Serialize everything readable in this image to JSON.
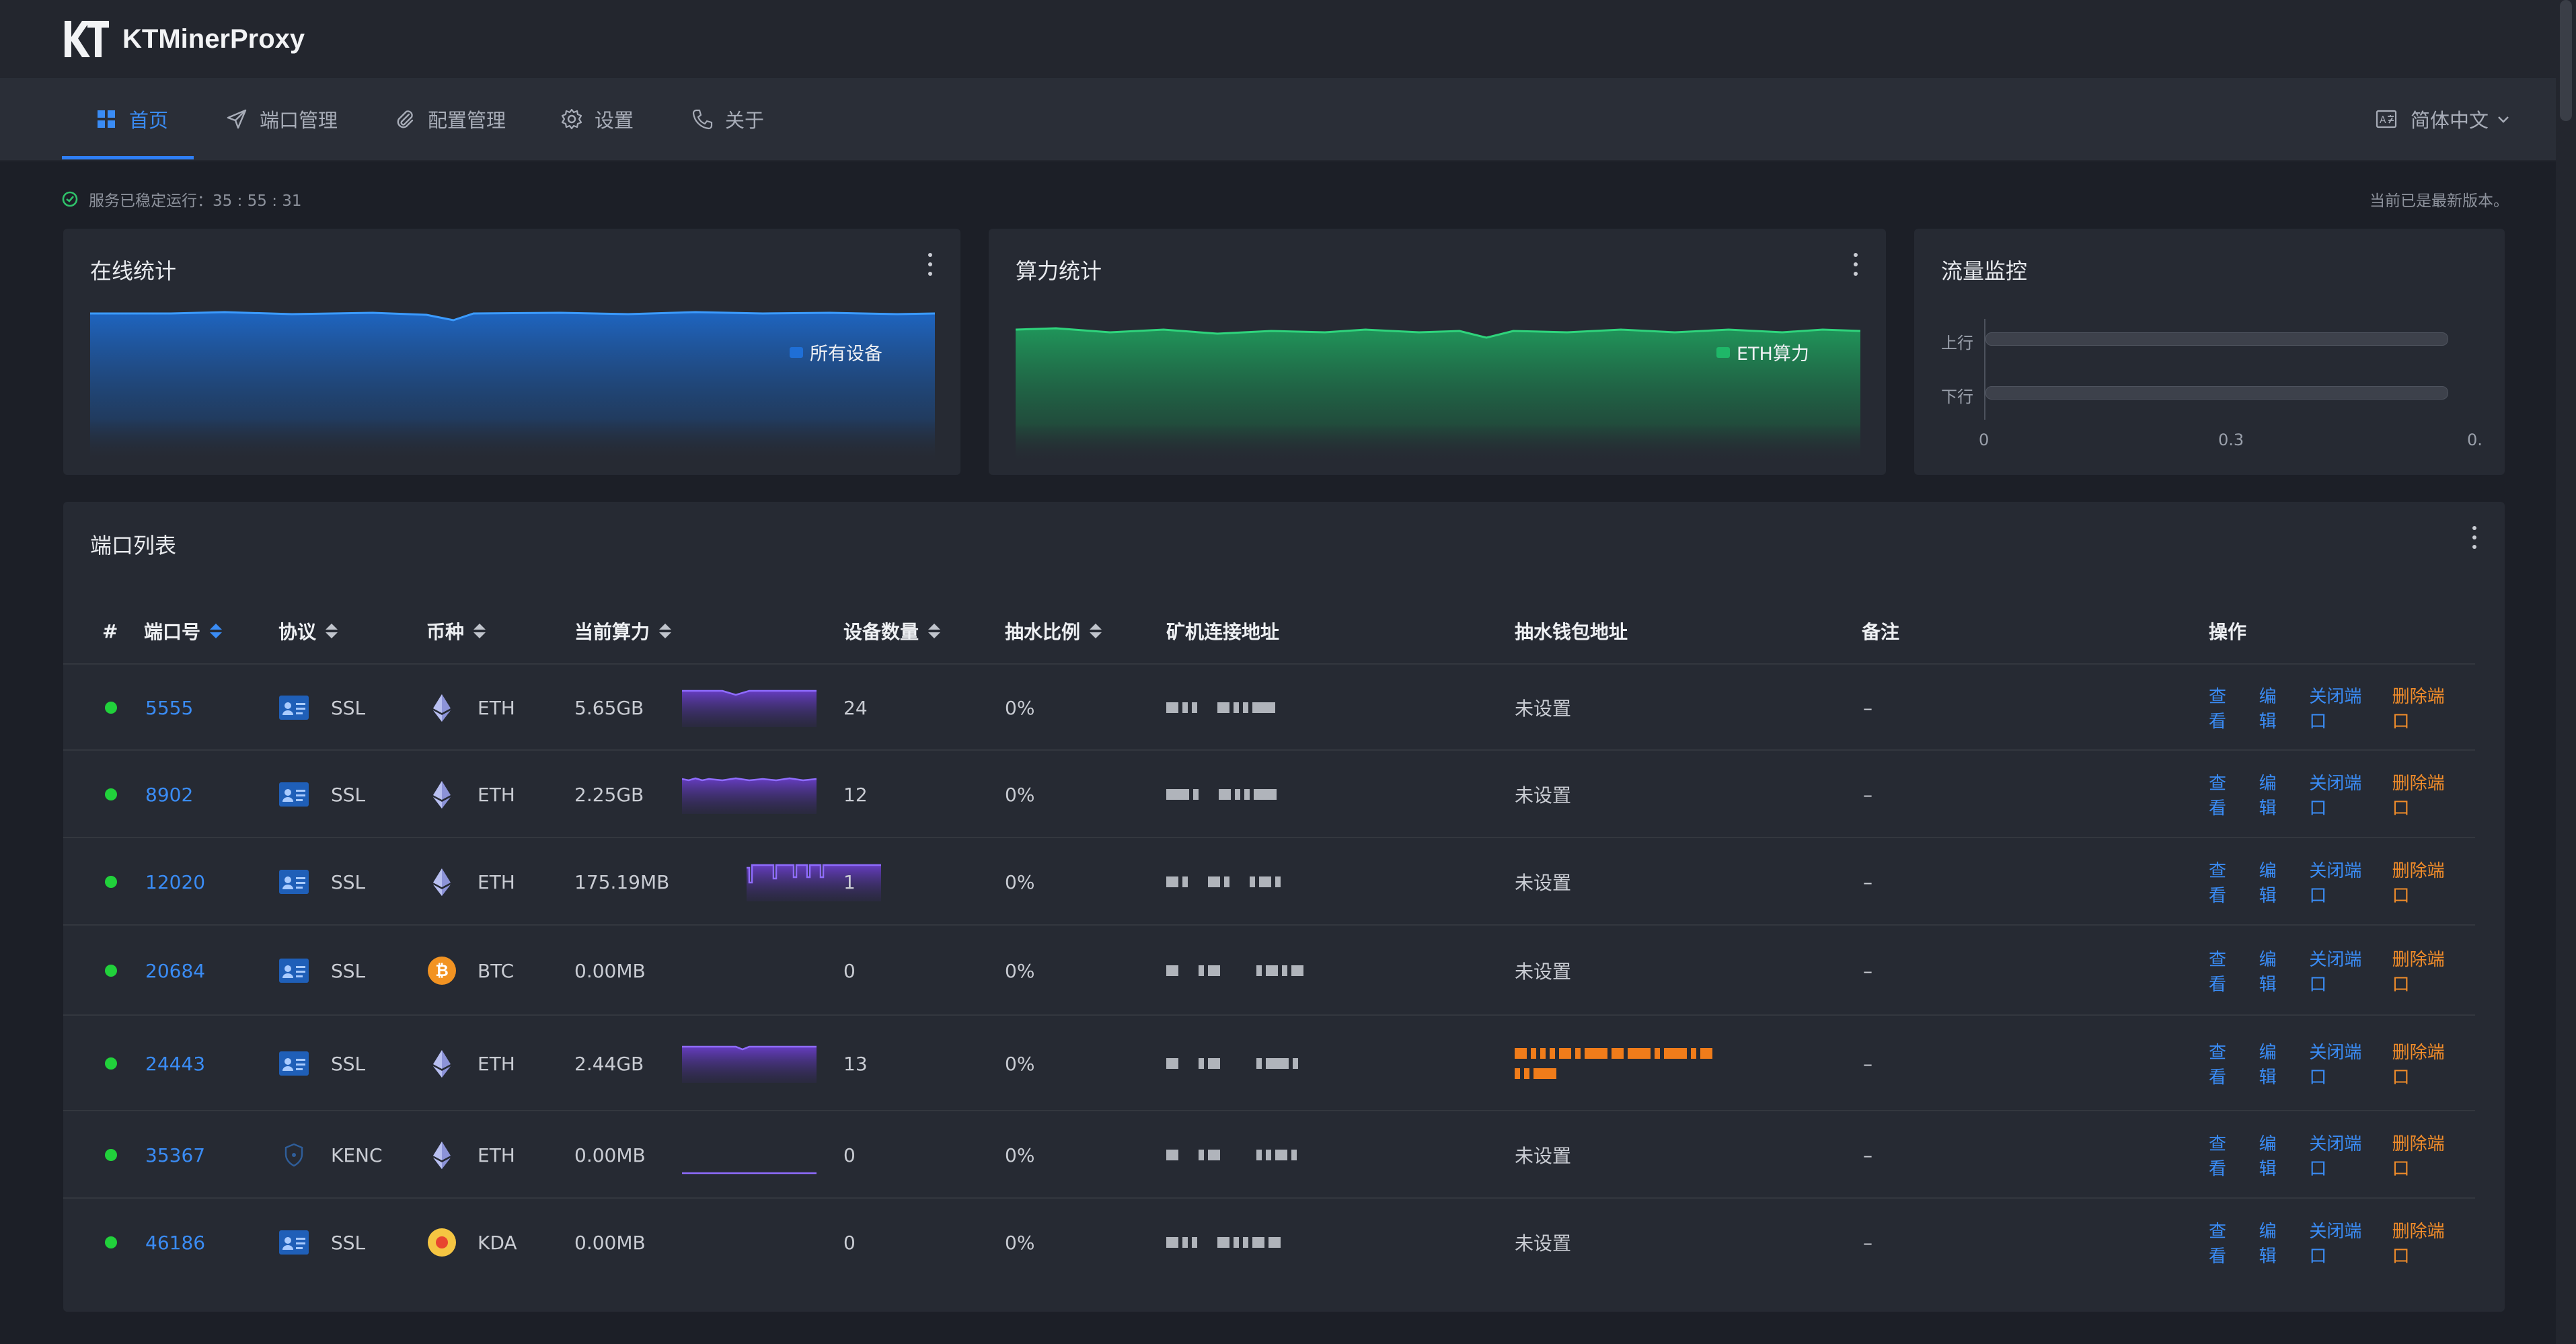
{
  "app": {
    "name": "KTMinerProxy"
  },
  "nav": {
    "items": [
      {
        "label": "首页",
        "active": true,
        "icon": "grid-icon"
      },
      {
        "label": "端口管理",
        "active": false,
        "icon": "send-icon"
      },
      {
        "label": "配置管理",
        "active": false,
        "icon": "paperclip-icon"
      },
      {
        "label": "设置",
        "active": false,
        "icon": "gear-icon"
      },
      {
        "label": "关于",
        "active": false,
        "icon": "phone-icon"
      }
    ],
    "language": "简体中文"
  },
  "status": {
    "uptime_label": "服务已稳定运行：35 : 55 : 31",
    "version_text": "当前已是最新版本。"
  },
  "cards": {
    "online": {
      "title": "在线统计",
      "legend": "所有设备",
      "color": "#1f6fd6"
    },
    "hashrate": {
      "title": "算力统计",
      "legend": "ETH算力",
      "color": "#1fb768"
    },
    "traffic": {
      "title": "流量监控",
      "up_label": "上行",
      "down_label": "下行",
      "ticks": [
        "0",
        "0.3",
        "0."
      ]
    }
  },
  "table": {
    "title": "端口列表",
    "headers": {
      "index": "#",
      "port": "端口号",
      "protocol": "协议",
      "coin": "币种",
      "hashrate": "当前算力",
      "devices": "设备数量",
      "fee": "抽水比例",
      "miner_addr": "矿机连接地址",
      "wallet": "抽水钱包地址",
      "note": "备注",
      "ops": "操作"
    },
    "actions": {
      "view": "查看",
      "edit": "编辑",
      "close": "关闭端口",
      "delete": "删除端口"
    },
    "rows": [
      {
        "port": "5555",
        "protocol": "SSL",
        "coin": "ETH",
        "hashrate": "5.65GB",
        "devices": "24",
        "fee": "0%",
        "wallet": "未设置",
        "note": "–"
      },
      {
        "port": "8902",
        "protocol": "SSL",
        "coin": "ETH",
        "hashrate": "2.25GB",
        "devices": "12",
        "fee": "0%",
        "wallet": "未设置",
        "note": "–"
      },
      {
        "port": "12020",
        "protocol": "SSL",
        "coin": "ETH",
        "hashrate": "175.19MB",
        "devices": "1",
        "fee": "0%",
        "wallet": "未设置",
        "note": "–"
      },
      {
        "port": "20684",
        "protocol": "SSL",
        "coin": "BTC",
        "hashrate": "0.00MB",
        "devices": "0",
        "fee": "0%",
        "wallet": "未设置",
        "note": "–"
      },
      {
        "port": "24443",
        "protocol": "SSL",
        "coin": "ETH",
        "hashrate": "2.44GB",
        "devices": "13",
        "fee": "0%",
        "wallet": "",
        "note": "–"
      },
      {
        "port": "35367",
        "protocol": "KENC",
        "coin": "ETH",
        "hashrate": "0.00MB",
        "devices": "0",
        "fee": "0%",
        "wallet": "未设置",
        "note": "–"
      },
      {
        "port": "46186",
        "protocol": "SSL",
        "coin": "KDA",
        "hashrate": "0.00MB",
        "devices": "0",
        "fee": "0%",
        "wallet": "未设置",
        "note": "–"
      }
    ]
  }
}
